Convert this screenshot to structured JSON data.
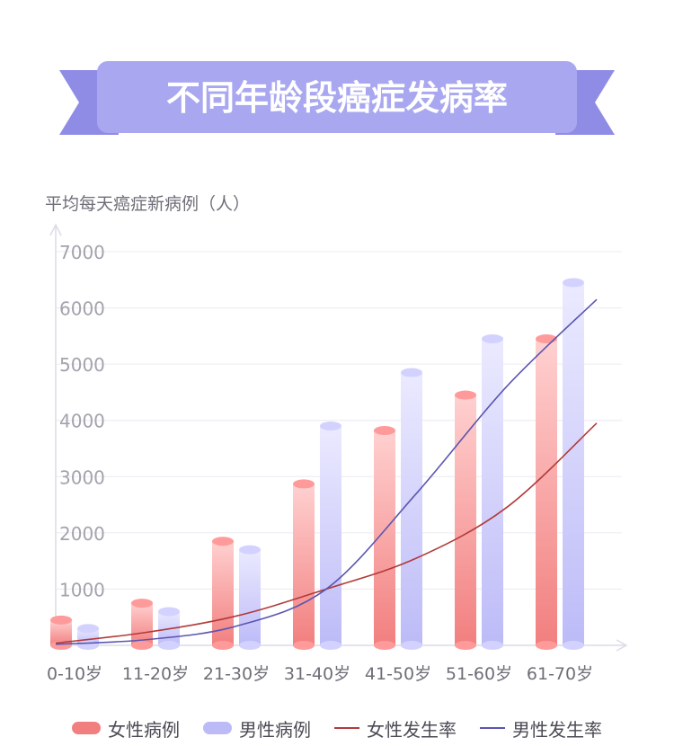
{
  "title": "不同年龄段癌症发病率",
  "colors": {
    "banner_main": "#a9a7f0",
    "banner_ribbon": "#8f8ce6",
    "female": "#f27f7f",
    "male": "#bdbbf7",
    "female_line": "#b23a3a",
    "male_line": "#5b56b0"
  },
  "chart_data": {
    "type": "bar",
    "ylabel": "平均每天癌症新病例（人）",
    "ylim": [
      0,
      7000
    ],
    "yticks": [
      1000,
      2000,
      3000,
      4000,
      5000,
      6000,
      7000
    ],
    "categories": [
      "0-10岁",
      "11-20岁",
      "21-30岁",
      "31-40岁",
      "41-50岁",
      "51-60岁",
      "61-70岁"
    ],
    "series": [
      {
        "name": "女性病例",
        "values": [
          450,
          750,
          1850,
          2870,
          3820,
          4450,
          5450
        ]
      },
      {
        "name": "男性病例",
        "values": [
          300,
          600,
          1700,
          3900,
          4850,
          5450,
          6450
        ]
      }
    ],
    "lines": [
      {
        "name": "女性发生率",
        "x": [
          0,
          1,
          2,
          3,
          4,
          5,
          6
        ],
        "y": [
          40,
          230,
          520,
          1000,
          1550,
          2450,
          3950
        ]
      },
      {
        "name": "男性发生率",
        "x": [
          0,
          1,
          2,
          3,
          4,
          5,
          6
        ],
        "y": [
          20,
          100,
          340,
          1000,
          2700,
          4600,
          6150
        ]
      }
    ],
    "legend": [
      "女性病例",
      "男性病例",
      "女性发生率",
      "男性发生率"
    ],
    "legend_position": "bottom",
    "grid": true
  }
}
